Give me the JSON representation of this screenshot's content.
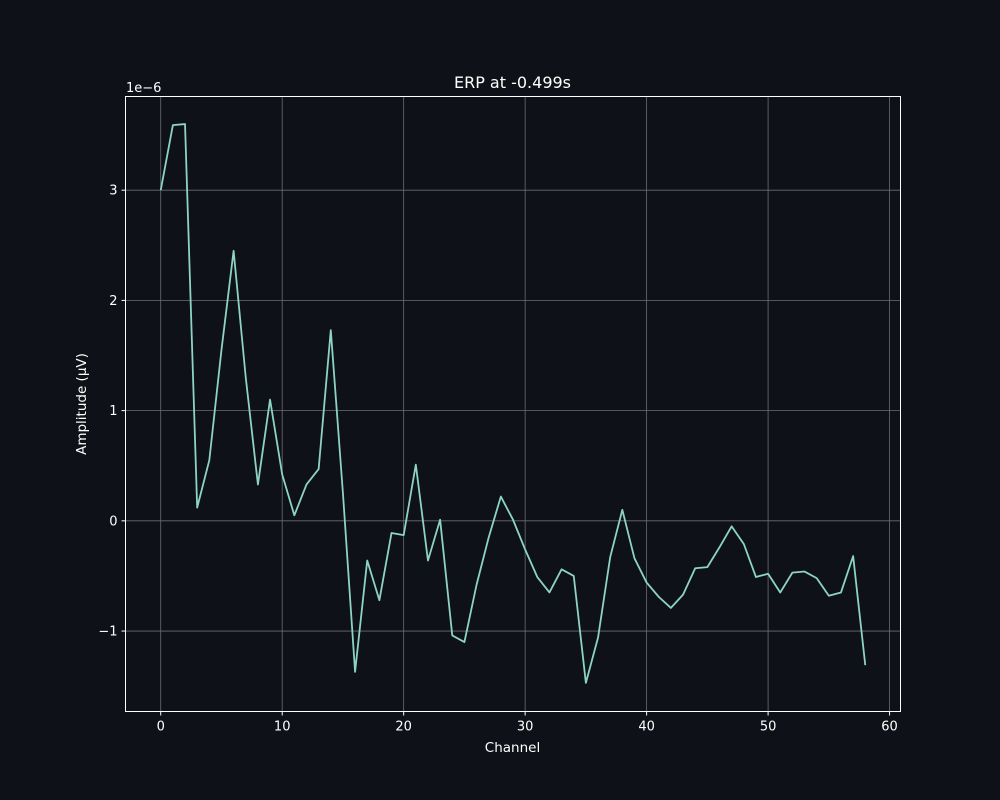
{
  "chart_data": {
    "type": "line",
    "title": "ERP at -0.499s",
    "xlabel": "Channel",
    "ylabel": "Amplitude (µV)",
    "y_scale_label": "1e−6",
    "y_scale_factor": 1e-06,
    "xlim": [
      -2.9,
      60.9
    ],
    "ylim": [
      -1.73e-06,
      3.85e-06
    ],
    "x_ticks": [
      0,
      10,
      20,
      30,
      40,
      50,
      60
    ],
    "x_tick_labels": [
      "0",
      "10",
      "20",
      "30",
      "40",
      "50",
      "60"
    ],
    "y_ticks": [
      -1e-06,
      0,
      1e-06,
      2e-06,
      3e-06
    ],
    "y_tick_labels": [
      "−1",
      "0",
      "1",
      "2",
      "3"
    ],
    "grid": true,
    "x": [
      0,
      1,
      2,
      3,
      4,
      5,
      6,
      7,
      8,
      9,
      10,
      11,
      12,
      13,
      14,
      15,
      16,
      17,
      18,
      19,
      20,
      21,
      22,
      23,
      24,
      25,
      26,
      27,
      28,
      29,
      30,
      31,
      32,
      33,
      34,
      35,
      36,
      37,
      38,
      39,
      40,
      41,
      42,
      43,
      44,
      45,
      46,
      47,
      48,
      49,
      50,
      51,
      52,
      53,
      54,
      55,
      56,
      57,
      58
    ],
    "series": [
      {
        "values": [
          3e-06,
          3.59e-06,
          3.6e-06,
          1.2e-07,
          5.5e-07,
          1.55e-06,
          2.45e-06,
          1.3e-06,
          3.3e-07,
          1.1e-06,
          4.2e-07,
          5e-08,
          3.3e-07,
          4.7e-07,
          1.73e-06,
          2.5e-07,
          -1.37e-06,
          -3.6e-07,
          -7.2e-07,
          -1.1e-07,
          -1.3e-07,
          5.1e-07,
          -3.6e-07,
          1e-08,
          -1.04e-06,
          -1.1e-06,
          -5.8e-07,
          -1.5e-07,
          2.2e-07,
          1e-08,
          -2.6e-07,
          -5.1e-07,
          -6.5e-07,
          -4.4e-07,
          -5e-07,
          -1.47e-06,
          -1.06e-06,
          -3.3e-07,
          1e-07,
          -3.4e-07,
          -5.6e-07,
          -6.9e-07,
          -7.9e-07,
          -6.7e-07,
          -4.3e-07,
          -4.2e-07,
          -2.4e-07,
          -5e-08,
          -2.1e-07,
          -5.1e-07,
          -4.8e-07,
          -6.5e-07,
          -4.7e-07,
          -4.6e-07,
          -5.2e-07,
          -6.8e-07,
          -6.5e-07,
          -3.2e-07,
          -1.31e-06
        ],
        "color": "#8dd3c7"
      }
    ],
    "colors": {
      "background": "#0e1117",
      "axes": "#ffffff",
      "grid": "#6b6e75",
      "text": "#ffffff"
    }
  }
}
